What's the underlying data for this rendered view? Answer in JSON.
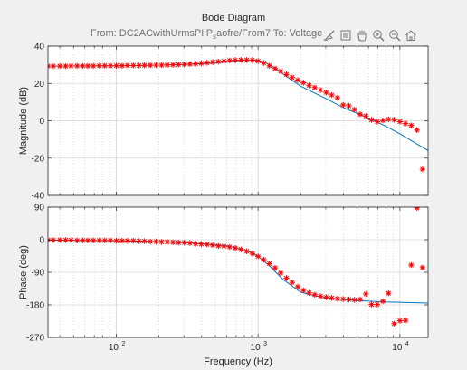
{
  "figure": {
    "title": "Bode Diagram",
    "subtitle_prefix": "From: DC2ACwithUrmsPIiP",
    "subtitle_sub": "s",
    "subtitle_suffix": "aofre/From7  To: Voltage",
    "toolbar": [
      "brush-icon",
      "data-tips-icon",
      "pan-hand-icon",
      "zoom-in-icon",
      "zoom-out-icon",
      "home-icon"
    ]
  },
  "chart_data": [
    {
      "type": "line",
      "role": "magnitude",
      "xlabel": "",
      "ylabel": "Magnitude (dB)",
      "xscale": "log",
      "xlim": [
        33,
        15800
      ],
      "ylim": [
        -40,
        40
      ],
      "yticks": [
        40,
        20,
        0,
        -20,
        -40
      ],
      "xticks": [
        100,
        1000,
        10000
      ],
      "xticklabels": [
        "",
        "",
        ""
      ],
      "grid": true,
      "series": [
        {
          "style": "line",
          "color": "#0072bd",
          "x": [
            33,
            100,
            200,
            400,
            600,
            800,
            950,
            1100,
            1300,
            1600,
            2000,
            3000,
            4000,
            6000,
            8000,
            10000,
            15800
          ],
          "y": [
            29.3,
            29.5,
            29.8,
            30.5,
            31.5,
            32.5,
            32.6,
            31.6,
            28.5,
            23.5,
            18.5,
            12.0,
            7.0,
            1.5,
            -3.0,
            -7.0,
            -16.0
          ]
        },
        {
          "style": "markers",
          "marker": "*",
          "color": "#ff0000",
          "x": [
            33,
            36,
            40,
            44,
            48,
            53,
            58,
            63,
            69,
            76,
            83,
            91,
            100,
            110,
            120,
            132,
            145,
            158,
            174,
            191,
            209,
            229,
            251,
            275,
            302,
            331,
            363,
            398,
            437,
            479,
            525,
            575,
            631,
            692,
            759,
            832,
            912,
            1000,
            1096,
            1202,
            1318,
            1445,
            1585,
            1738,
            1905,
            2089,
            2291,
            2512,
            2754,
            3020,
            3311,
            3631,
            3981,
            4365,
            4786,
            5248,
            5754,
            6310,
            6918,
            7586,
            8318,
            9120,
            10000,
            10965,
            12023,
            13183,
            14454
          ],
          "y": [
            29.3,
            29.3,
            29.3,
            29.3,
            29.4,
            29.4,
            29.4,
            29.4,
            29.4,
            29.5,
            29.5,
            29.5,
            29.5,
            29.5,
            29.6,
            29.6,
            29.6,
            29.7,
            29.7,
            29.8,
            29.8,
            29.9,
            30.0,
            30.1,
            30.2,
            30.4,
            30.6,
            30.8,
            31.1,
            31.4,
            31.7,
            32.0,
            32.3,
            32.5,
            32.6,
            32.6,
            32.5,
            32.0,
            31.0,
            29.5,
            28.0,
            26.5,
            24.8,
            23.2,
            21.8,
            20.4,
            19.0,
            17.8,
            16.5,
            15.2,
            13.8,
            12.3,
            8.5,
            8.0,
            6.0,
            3.5,
            2.5,
            0.5,
            -0.5,
            0.2,
            0.8,
            0.6,
            -0.5,
            -1.5,
            -2.5,
            -5.0,
            -26.0
          ]
        }
      ]
    },
    {
      "type": "line",
      "role": "phase",
      "xlabel": "Frequency  (Hz)",
      "ylabel": "Phase (deg)",
      "xscale": "log",
      "xlim": [
        33,
        15800
      ],
      "ylim": [
        -270,
        90
      ],
      "yticks": [
        90,
        0,
        -90,
        -180,
        -270
      ],
      "xticks": [
        100,
        1000,
        10000
      ],
      "xticklabels": [
        "10",
        "10",
        "10"
      ],
      "xtickexps": [
        "2",
        "3",
        "4"
      ],
      "grid": true,
      "series": [
        {
          "style": "line",
          "color": "#0072bd",
          "x": [
            33,
            100,
            200,
            300,
            400,
            500,
            600,
            700,
            800,
            900,
            1000,
            1200,
            1500,
            2000,
            3000,
            5000,
            8000,
            15800
          ],
          "y": [
            -1,
            -3,
            -5,
            -8,
            -11,
            -14,
            -17,
            -22,
            -28,
            -36,
            -46,
            -72,
            -110,
            -145,
            -162,
            -168,
            -172,
            -175
          ]
        },
        {
          "style": "markers",
          "marker": "*",
          "color": "#ff0000",
          "x": [
            33,
            36,
            40,
            44,
            48,
            53,
            58,
            63,
            69,
            76,
            83,
            91,
            100,
            110,
            120,
            132,
            145,
            158,
            174,
            191,
            209,
            229,
            251,
            275,
            302,
            331,
            363,
            398,
            437,
            479,
            525,
            575,
            631,
            692,
            759,
            832,
            912,
            1000,
            1096,
            1202,
            1318,
            1445,
            1585,
            1738,
            1905,
            2089,
            2291,
            2512,
            2754,
            3020,
            3311,
            3631,
            3981,
            4365,
            4786,
            5248,
            5754,
            6310,
            6918,
            7586,
            8318,
            9120,
            10000,
            10965,
            12023,
            13183,
            14454
          ],
          "y": [
            -1,
            -1,
            -1,
            -1,
            -1,
            -2,
            -2,
            -2,
            -2,
            -2,
            -2,
            -2,
            -3,
            -3,
            -3,
            -3,
            -4,
            -4,
            -5,
            -5,
            -6,
            -6,
            -7,
            -8,
            -8,
            -9,
            -11,
            -12,
            -13,
            -15,
            -17,
            -18,
            -20,
            -23,
            -27,
            -32,
            -38,
            -46,
            -55,
            -66,
            -78,
            -92,
            -106,
            -118,
            -130,
            -140,
            -147,
            -152,
            -156,
            -159,
            -161,
            -163,
            -164,
            -165,
            -166,
            -165,
            -150,
            -179,
            -179,
            -170,
            -148,
            -232,
            -224,
            -223,
            -70,
            88,
            -77
          ]
        }
      ]
    }
  ]
}
